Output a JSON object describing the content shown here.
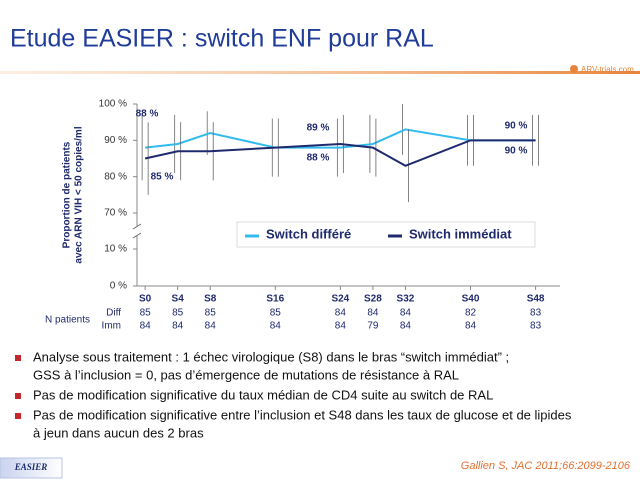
{
  "header": {
    "title": "Etude EASIER : switch ENF pour RAL",
    "logo": "ARV-trials.com"
  },
  "chart_data": {
    "type": "line",
    "y_label": [
      "Proportion de patients",
      "avec ARN VIH < 50 copies/ml"
    ],
    "x": [
      0,
      4,
      8,
      16,
      24,
      28,
      32,
      40,
      48
    ],
    "xlim": [
      -1,
      51
    ],
    "xticks": [
      {
        "value": 0,
        "label": "S0"
      },
      {
        "value": 4,
        "label": "S4"
      },
      {
        "value": 8,
        "label": "S8"
      },
      {
        "value": 16,
        "label": "S16"
      },
      {
        "value": 24,
        "label": "S24"
      },
      {
        "value": 28,
        "label": "S28"
      },
      {
        "value": 32,
        "label": "S32"
      },
      {
        "value": 40,
        "label": "S40"
      },
      {
        "value": 48,
        "label": "S48"
      }
    ],
    "ylim": [
      0,
      100
    ],
    "y_break": [
      10,
      70
    ],
    "yticks": [
      {
        "value": 0,
        "label": "0 %"
      },
      {
        "value": 10,
        "label": "10 %"
      },
      {
        "value": 70,
        "label": "70 %"
      },
      {
        "value": 80,
        "label": "80 %"
      },
      {
        "value": 90,
        "label": "90 %"
      },
      {
        "value": 100,
        "label": "100 %"
      }
    ],
    "series": [
      {
        "name": "Switch différé",
        "color": "#33bbee",
        "values": [
          88,
          89,
          92,
          88,
          88,
          89,
          93,
          90,
          90
        ],
        "errors": [
          9,
          8,
          6,
          8,
          8,
          8,
          7,
          7,
          7
        ]
      },
      {
        "name": "Switch immédiat",
        "color": "#1f2a6e",
        "values": [
          85,
          87,
          87,
          88,
          89,
          88,
          83,
          90,
          90
        ],
        "errors": [
          10,
          8,
          8,
          8,
          8,
          8,
          10,
          7,
          7
        ]
      }
    ],
    "annotations": [
      "88 %",
      "85 %",
      "89 %",
      "88 %",
      "90 %",
      "90 %"
    ]
  },
  "n_patients": {
    "label": "N patients",
    "rows": [
      {
        "name": "Diff",
        "values": [
          85,
          85,
          85,
          85,
          84,
          84,
          84,
          82,
          83
        ]
      },
      {
        "name": "Imm",
        "values": [
          84,
          84,
          84,
          84,
          84,
          79,
          84,
          84,
          83
        ]
      }
    ]
  },
  "bullets": [
    [
      "Analyse sous traitement : 1 échec virologique (S8) dans le bras “switch immédiat” ;",
      "GSS à l’inclusion = 0, pas d’émergence de mutations de résistance à RAL"
    ],
    [
      "Pas de modification significative du taux médian de CD4 suite au switch de RAL"
    ],
    [
      "Pas de modification significative entre l’inclusion et S48 dans les taux de glucose et de lipides",
      "à jeun dans aucun des 2 bras"
    ]
  ],
  "footer": {
    "tag": "EASIER",
    "citation": "Gallien S, JAC 2011;66:2099-2106"
  }
}
